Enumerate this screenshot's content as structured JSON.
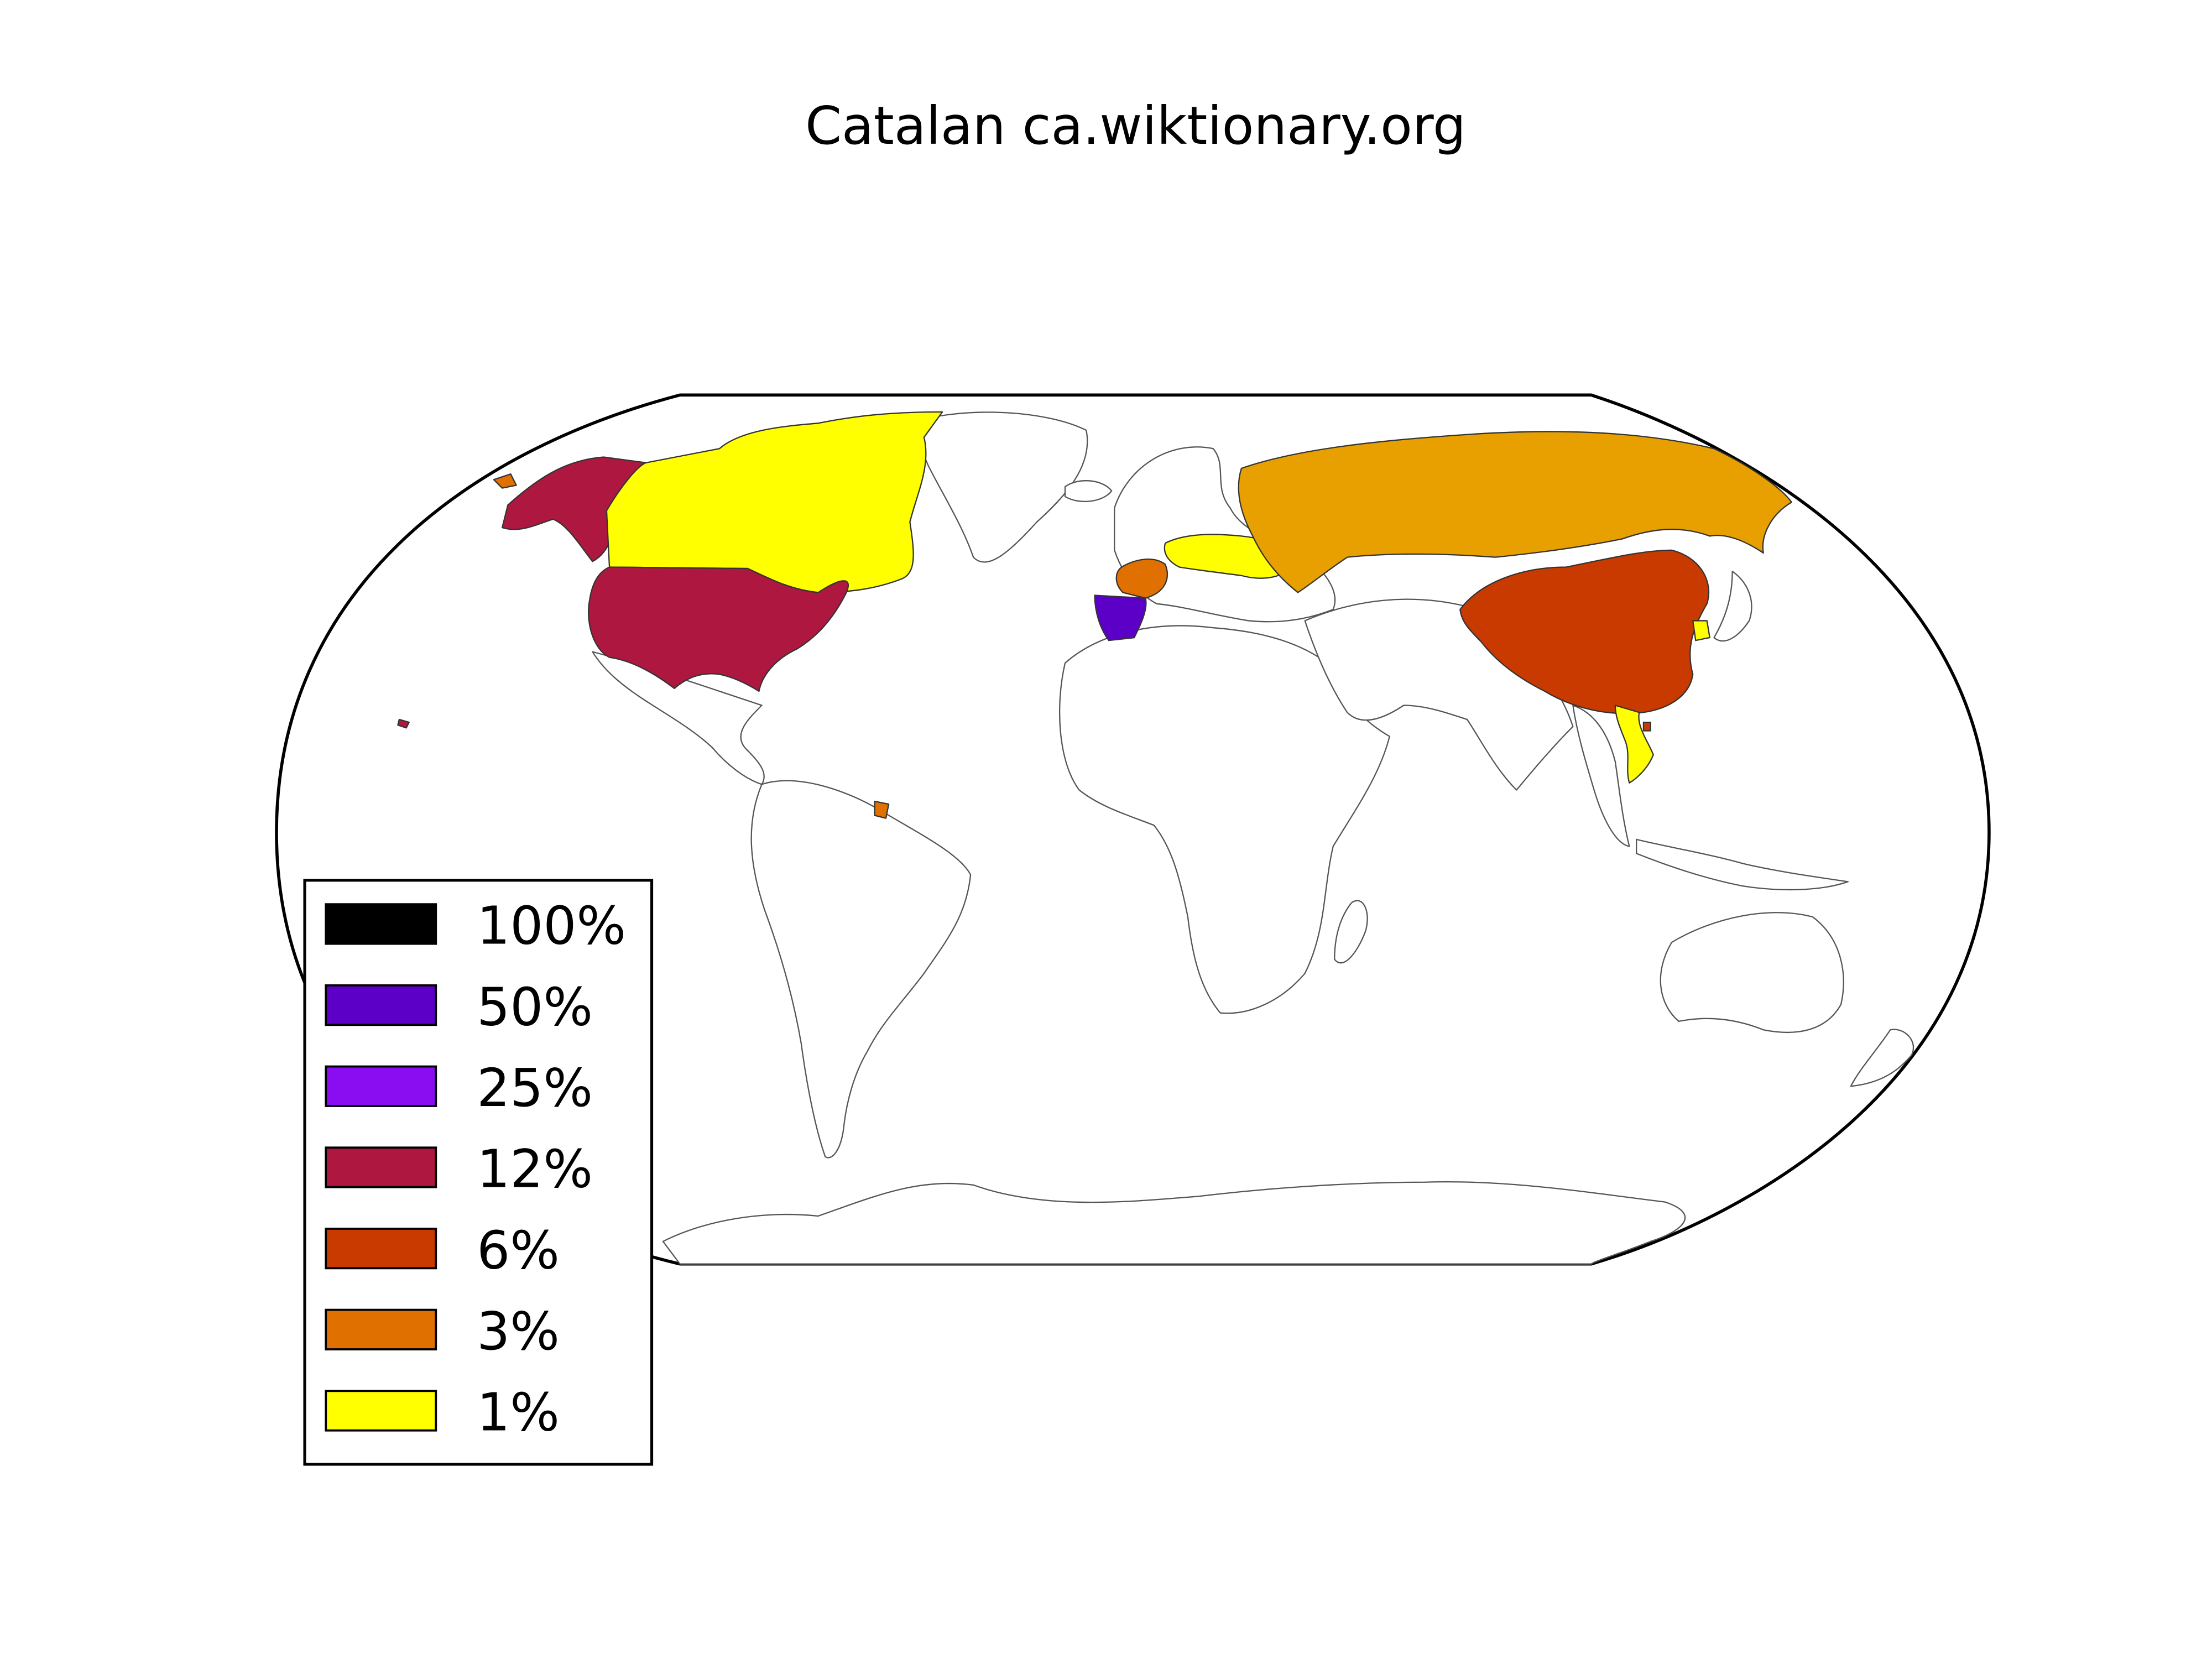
{
  "title": "Catalan ca.wiktionary.org",
  "legend": [
    {
      "label": "100%",
      "color": "#000000"
    },
    {
      "label": "50%",
      "color": "#5c00c8"
    },
    {
      "label": "25%",
      "color": "#8a0cf0"
    },
    {
      "label": "12%",
      "color": "#ae1840"
    },
    {
      "label": "6%",
      "color": "#c83a00"
    },
    {
      "label": "3%",
      "color": "#e07000"
    },
    {
      "label": "1%",
      "color": "#ffff00"
    }
  ],
  "countries": [
    {
      "name": "Spain",
      "share": "50%",
      "color": "#5c00c8"
    },
    {
      "name": "United States",
      "share": "12%",
      "color": "#ae1840"
    },
    {
      "name": "China",
      "share": "6%",
      "color": "#c83a00"
    },
    {
      "name": "France",
      "share": "3%",
      "color": "#e07000"
    },
    {
      "name": "French Guiana",
      "share": "3%",
      "color": "#e07000"
    },
    {
      "name": "Russia",
      "share": "3%",
      "color": "#e8a000"
    },
    {
      "name": "Canada",
      "share": "1%",
      "color": "#ffff00"
    },
    {
      "name": "Germany",
      "share": "1%",
      "color": "#ffff00"
    },
    {
      "name": "Poland",
      "share": "1%",
      "color": "#ffff00"
    },
    {
      "name": "Ukraine",
      "share": "1%",
      "color": "#ffff00"
    },
    {
      "name": "Vietnam",
      "share": "1%",
      "color": "#ffff00"
    },
    {
      "name": "South Korea",
      "share": "1%",
      "color": "#ffff00"
    }
  ]
}
